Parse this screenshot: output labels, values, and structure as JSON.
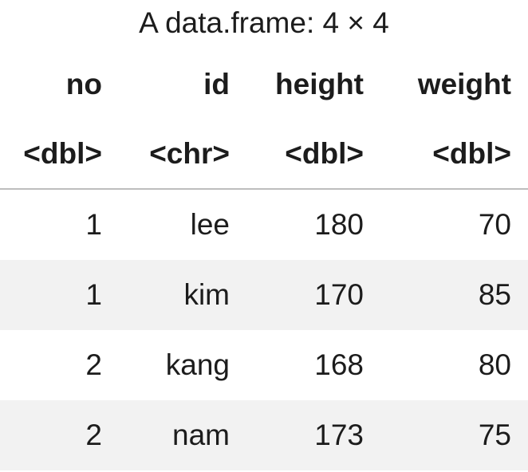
{
  "caption": "A data.frame: 4 × 4",
  "columns": [
    {
      "name": "no",
      "type": "<dbl>"
    },
    {
      "name": "id",
      "type": "<chr>"
    },
    {
      "name": "height",
      "type": "<dbl>"
    },
    {
      "name": "weight",
      "type": "<dbl>"
    }
  ],
  "rows": [
    [
      "1",
      "lee",
      "180",
      "70"
    ],
    [
      "1",
      "kim",
      "170",
      "85"
    ],
    [
      "2",
      "kang",
      "168",
      "80"
    ],
    [
      "2",
      "nam",
      "173",
      "75"
    ]
  ],
  "colors": {
    "text": "#1c1c1c",
    "stripe": "#f2f2f2",
    "header_rule": "#bdbdbd"
  }
}
